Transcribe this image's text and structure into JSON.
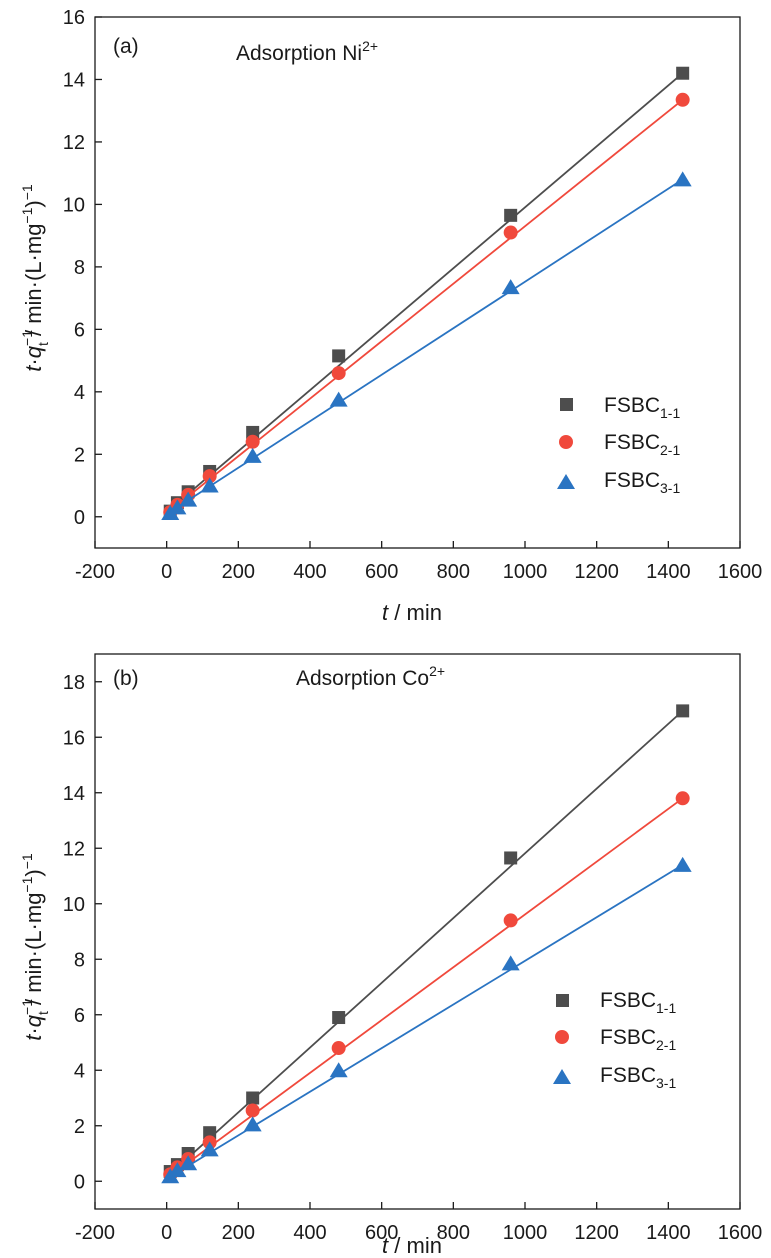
{
  "colors": {
    "FSBC1-1": "#4d4d4d",
    "FSBC2-1": "#f0493c",
    "FSBC3-1": "#2a74c2"
  },
  "chart_data": [
    {
      "type": "scatter",
      "panel_label": "(a)",
      "title": {
        "text": "Adsorption Ni",
        "sup": "2+"
      },
      "xlabel": {
        "italic": "t",
        "rest": " / min"
      },
      "ylabel": {
        "italic_t": "t",
        "dot": "·",
        "italic_q": "q",
        "sup1": "−1",
        "sub": "t",
        "rest": " / min·(L·mg",
        "sup2": "−1",
        "close": ")",
        "sup3": "−1"
      },
      "xlim": [
        -200,
        1600
      ],
      "ylim": [
        -1,
        16
      ],
      "xticks": [
        -200,
        0,
        200,
        400,
        600,
        800,
        1000,
        1200,
        1400,
        1600
      ],
      "yticks": [
        0,
        2,
        4,
        6,
        8,
        10,
        12,
        14,
        16
      ],
      "grid": false,
      "legend_position": "right",
      "x": [
        10,
        30,
        60,
        120,
        240,
        480,
        960,
        1440
      ],
      "series": [
        {
          "name": "FSBC",
          "sub": "1-1",
          "marker": "square",
          "color_key": "FSBC1-1",
          "values": [
            0.18,
            0.45,
            0.8,
            1.45,
            2.7,
            5.15,
            9.65,
            14.2
          ],
          "fit": {
            "x": [
              0,
              1440
            ],
            "y": [
              0.15,
              14.2
            ]
          }
        },
        {
          "name": "FSBC",
          "sub": "2-1",
          "marker": "circle",
          "color_key": "FSBC2-1",
          "values": [
            0.15,
            0.38,
            0.7,
            1.3,
            2.4,
            4.6,
            9.1,
            13.35
          ],
          "fit": {
            "x": [
              0,
              1440
            ],
            "y": [
              0.1,
              13.35
            ]
          }
        },
        {
          "name": "FSBC",
          "sub": "3-1",
          "marker": "triangle",
          "color_key": "FSBC3-1",
          "values": [
            0.12,
            0.3,
            0.55,
            1.0,
            1.95,
            3.75,
            7.35,
            10.8
          ],
          "fit": {
            "x": [
              0,
              1440
            ],
            "y": [
              0.08,
              10.8
            ]
          }
        }
      ]
    },
    {
      "type": "scatter",
      "panel_label": "(b)",
      "title": {
        "text": "Adsorption Co",
        "sup": "2+"
      },
      "xlabel": {
        "italic": "t",
        "rest": " / min"
      },
      "ylabel": {
        "italic_t": "t",
        "dot": "·",
        "italic_q": "q",
        "sup1": "−1",
        "sub": "t",
        "rest": " / min·(L·mg",
        "sup2": "−1",
        "close": ")",
        "sup3": "−1"
      },
      "xlim": [
        -200,
        1600
      ],
      "ylim": [
        -1,
        19
      ],
      "xticks": [
        -200,
        0,
        200,
        400,
        600,
        800,
        1000,
        1200,
        1400,
        1600
      ],
      "yticks": [
        0,
        2,
        4,
        6,
        8,
        10,
        12,
        14,
        16,
        18
      ],
      "grid": false,
      "legend_position": "right",
      "x": [
        10,
        30,
        60,
        120,
        240,
        480,
        960,
        1440
      ],
      "series": [
        {
          "name": "FSBC",
          "sub": "1-1",
          "marker": "square",
          "color_key": "FSBC1-1",
          "values": [
            0.35,
            0.6,
            1.0,
            1.75,
            3.0,
            5.9,
            11.65,
            16.95
          ],
          "fit": {
            "x": [
              0,
              1440
            ],
            "y": [
              0.15,
              16.95
            ]
          }
        },
        {
          "name": "FSBC",
          "sub": "2-1",
          "marker": "circle",
          "color_key": "FSBC2-1",
          "values": [
            0.25,
            0.5,
            0.8,
            1.4,
            2.55,
            4.8,
            9.4,
            13.8
          ],
          "fit": {
            "x": [
              0,
              1440
            ],
            "y": [
              0.1,
              13.8
            ]
          }
        },
        {
          "name": "FSBC",
          "sub": "3-1",
          "marker": "triangle",
          "color_key": "FSBC3-1",
          "values": [
            0.18,
            0.4,
            0.65,
            1.15,
            2.05,
            4.0,
            7.85,
            11.4
          ],
          "fit": {
            "x": [
              0,
              1440
            ],
            "y": [
              0.08,
              11.4
            ]
          }
        }
      ]
    }
  ]
}
